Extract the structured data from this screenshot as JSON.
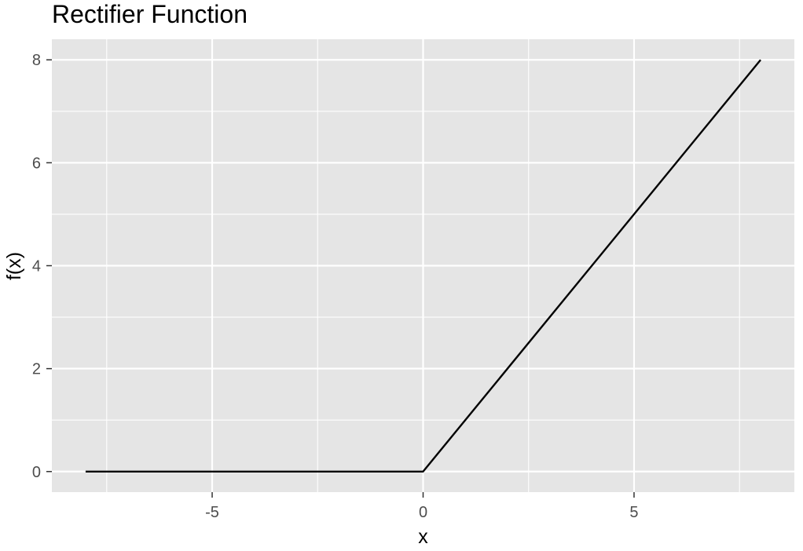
{
  "chart_data": {
    "type": "line",
    "title": "Rectifier Function",
    "xlabel": "x",
    "ylabel": "f(x)",
    "xlim": [
      -8.8,
      8.8
    ],
    "ylim": [
      -0.4,
      8.4
    ],
    "x_ticks": [
      -5,
      0,
      5
    ],
    "x_tick_labels": [
      "-5",
      "0",
      "5"
    ],
    "y_ticks": [
      0,
      2,
      4,
      6,
      8
    ],
    "y_tick_labels": [
      "0",
      "2",
      "4",
      "6",
      "8"
    ],
    "x_minor_gridlines": [
      -7.5,
      -2.5,
      2.5,
      7.5
    ],
    "y_minor_gridlines": [
      1,
      3,
      5,
      7
    ],
    "grid": true,
    "legend": "none",
    "series": [
      {
        "x": [
          -8,
          0,
          8
        ],
        "y": [
          0,
          0,
          8
        ]
      }
    ],
    "colors": {
      "panel_background": "#e5e5e5",
      "gridline": "#ffffff",
      "line": "#000000",
      "tick_text": "#4d4d4d",
      "tick_mark": "#333333"
    }
  }
}
